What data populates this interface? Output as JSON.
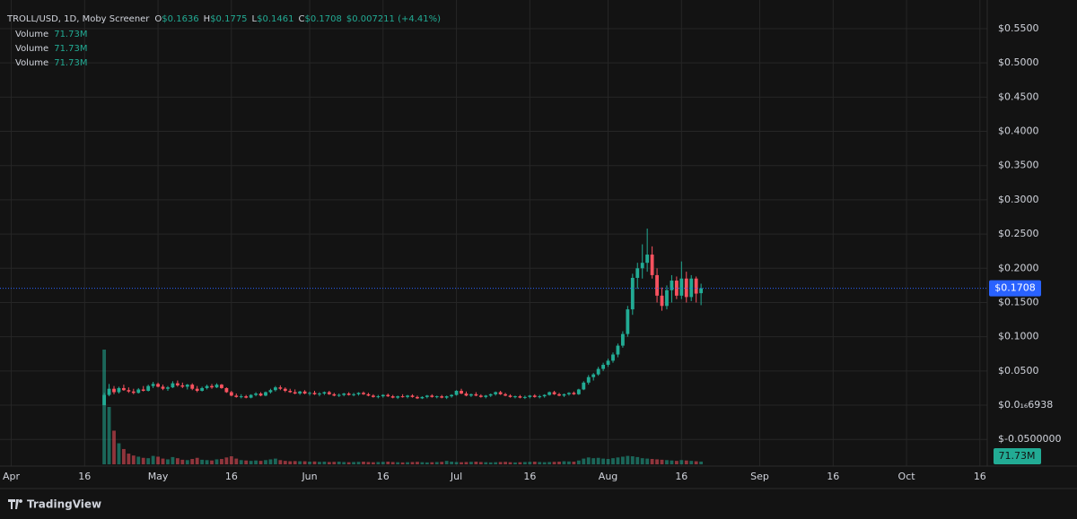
{
  "header": {
    "symbol": "TROLL/USD, 1D, Moby Screener",
    "ohlc": [
      {
        "key": "O",
        "value": "$0.1636"
      },
      {
        "key": "H",
        "value": "$0.1775"
      },
      {
        "key": "L",
        "value": "$0.1461"
      },
      {
        "key": "C",
        "value": "$0.1708"
      }
    ],
    "change": "$0.007211 (+4.41%)",
    "volume_rows": [
      {
        "label": "Volume",
        "value": "71.73M"
      },
      {
        "label": "Volume",
        "value": "71.73M"
      },
      {
        "label": "Volume",
        "value": "71.73M"
      }
    ]
  },
  "footer": {
    "brand": "TradingView"
  },
  "chart_data": {
    "type": "candlestick",
    "up_color": "#22ab94",
    "down_color": "#f7525f",
    "price_line_color": "#2962ff",
    "grid": true,
    "xlim": [
      -1.3,
      200.5
    ],
    "ylim": [
      -0.089,
      0.5919
    ],
    "vlim": [
      0,
      3000
    ],
    "xticks": [
      {
        "value": 1,
        "label": "Apr"
      },
      {
        "value": 16,
        "label": "16"
      },
      {
        "value": 31,
        "label": "May"
      },
      {
        "value": 46,
        "label": "16"
      },
      {
        "value": 62,
        "label": "Jun"
      },
      {
        "value": 77,
        "label": "16"
      },
      {
        "value": 92,
        "label": "Jul"
      },
      {
        "value": 107,
        "label": "16"
      },
      {
        "value": 123,
        "label": "Aug"
      },
      {
        "value": 138,
        "label": "16"
      },
      {
        "value": 154,
        "label": "Sep"
      },
      {
        "value": 169,
        "label": "16"
      },
      {
        "value": 184,
        "label": "Oct"
      },
      {
        "value": 199,
        "label": "16"
      }
    ],
    "yticks": [
      {
        "value": 0.55,
        "label": "$0.5500"
      },
      {
        "value": 0.5,
        "label": "$0.5000"
      },
      {
        "value": 0.45,
        "label": "$0.4500"
      },
      {
        "value": 0.4,
        "label": "$0.4000"
      },
      {
        "value": 0.35,
        "label": "$0.3500"
      },
      {
        "value": 0.3,
        "label": "$0.3000"
      },
      {
        "value": 0.25,
        "label": "$0.2500"
      },
      {
        "value": 0.2,
        "label": "$0.2000"
      },
      {
        "value": 0.15,
        "label": "$0.1500"
      },
      {
        "value": 0.1,
        "label": "$0.1000"
      },
      {
        "value": 0.05,
        "label": "$0.0500"
      },
      {
        "value": 0,
        "label": "$0.0₁₆6938"
      },
      {
        "value": -0.05,
        "label": "$-0.0500000"
      }
    ],
    "last_price_label": "$0.1708",
    "last_volume_label": "71.73M",
    "x": [
      20,
      21,
      22,
      23,
      24,
      25,
      26,
      27,
      28,
      29,
      30,
      31,
      32,
      33,
      34,
      35,
      36,
      37,
      38,
      39,
      40,
      41,
      42,
      43,
      44,
      45,
      46,
      47,
      48,
      49,
      50,
      51,
      52,
      53,
      54,
      55,
      56,
      57,
      58,
      59,
      60,
      61,
      62,
      63,
      64,
      65,
      66,
      67,
      68,
      69,
      70,
      71,
      72,
      73,
      74,
      75,
      76,
      77,
      78,
      79,
      80,
      81,
      82,
      83,
      84,
      85,
      86,
      87,
      88,
      89,
      90,
      91,
      92,
      93,
      94,
      95,
      96,
      97,
      98,
      99,
      100,
      101,
      102,
      103,
      104,
      105,
      106,
      107,
      108,
      109,
      110,
      111,
      112,
      113,
      114,
      115,
      116,
      117,
      118,
      119,
      120,
      121,
      122,
      123,
      124,
      125,
      126,
      127,
      128,
      129,
      130,
      131,
      132,
      133,
      134,
      135,
      136,
      137,
      138,
      139,
      140,
      141,
      142
    ],
    "ohlc": [
      [
        0.0001,
        0.018,
        0.0001,
        0.015
      ],
      [
        0.015,
        0.031,
        0.013,
        0.024
      ],
      [
        0.024,
        0.028,
        0.016,
        0.019
      ],
      [
        0.019,
        0.027,
        0.017,
        0.025
      ],
      [
        0.025,
        0.03,
        0.021,
        0.022
      ],
      [
        0.022,
        0.026,
        0.018,
        0.02
      ],
      [
        0.02,
        0.024,
        0.016,
        0.018
      ],
      [
        0.018,
        0.025,
        0.017,
        0.023
      ],
      [
        0.023,
        0.028,
        0.02,
        0.021
      ],
      [
        0.021,
        0.03,
        0.02,
        0.028
      ],
      [
        0.028,
        0.034,
        0.025,
        0.031
      ],
      [
        0.031,
        0.033,
        0.026,
        0.027
      ],
      [
        0.027,
        0.03,
        0.022,
        0.024
      ],
      [
        0.024,
        0.028,
        0.021,
        0.026
      ],
      [
        0.026,
        0.035,
        0.025,
        0.032
      ],
      [
        0.032,
        0.036,
        0.027,
        0.029
      ],
      [
        0.029,
        0.033,
        0.025,
        0.027
      ],
      [
        0.027,
        0.031,
        0.023,
        0.03
      ],
      [
        0.03,
        0.032,
        0.022,
        0.024
      ],
      [
        0.024,
        0.028,
        0.019,
        0.021
      ],
      [
        0.021,
        0.027,
        0.02,
        0.025
      ],
      [
        0.025,
        0.03,
        0.023,
        0.028
      ],
      [
        0.028,
        0.031,
        0.024,
        0.026
      ],
      [
        0.026,
        0.032,
        0.025,
        0.03
      ],
      [
        0.03,
        0.031,
        0.024,
        0.025
      ],
      [
        0.025,
        0.026,
        0.018,
        0.019
      ],
      [
        0.019,
        0.021,
        0.013,
        0.014
      ],
      [
        0.014,
        0.017,
        0.011,
        0.012
      ],
      [
        0.012,
        0.016,
        0.01,
        0.013
      ],
      [
        0.013,
        0.015,
        0.01,
        0.011
      ],
      [
        0.011,
        0.016,
        0.01,
        0.015
      ],
      [
        0.015,
        0.019,
        0.013,
        0.017
      ],
      [
        0.017,
        0.019,
        0.013,
        0.014
      ],
      [
        0.014,
        0.02,
        0.013,
        0.019
      ],
      [
        0.019,
        0.024,
        0.017,
        0.022
      ],
      [
        0.022,
        0.028,
        0.02,
        0.026
      ],
      [
        0.026,
        0.029,
        0.022,
        0.024
      ],
      [
        0.024,
        0.026,
        0.019,
        0.021
      ],
      [
        0.021,
        0.024,
        0.018,
        0.019
      ],
      [
        0.019,
        0.023,
        0.016,
        0.017
      ],
      [
        0.017,
        0.021,
        0.015,
        0.02
      ],
      [
        0.02,
        0.022,
        0.016,
        0.017
      ],
      [
        0.017,
        0.02,
        0.014,
        0.018
      ],
      [
        0.018,
        0.021,
        0.015,
        0.016
      ],
      [
        0.016,
        0.019,
        0.013,
        0.017
      ],
      [
        0.017,
        0.02,
        0.015,
        0.019
      ],
      [
        0.019,
        0.021,
        0.015,
        0.016
      ],
      [
        0.016,
        0.018,
        0.013,
        0.014
      ],
      [
        0.014,
        0.017,
        0.012,
        0.015
      ],
      [
        0.015,
        0.018,
        0.013,
        0.017
      ],
      [
        0.017,
        0.019,
        0.014,
        0.015
      ],
      [
        0.015,
        0.018,
        0.013,
        0.016
      ],
      [
        0.016,
        0.019,
        0.014,
        0.018
      ],
      [
        0.018,
        0.02,
        0.015,
        0.016
      ],
      [
        0.016,
        0.018,
        0.013,
        0.014
      ],
      [
        0.014,
        0.016,
        0.011,
        0.012
      ],
      [
        0.012,
        0.015,
        0.01,
        0.013
      ],
      [
        0.013,
        0.016,
        0.011,
        0.015
      ],
      [
        0.015,
        0.017,
        0.012,
        0.013
      ],
      [
        0.013,
        0.015,
        0.01,
        0.011
      ],
      [
        0.011,
        0.014,
        0.009,
        0.013
      ],
      [
        0.013,
        0.016,
        0.011,
        0.012
      ],
      [
        0.012,
        0.015,
        0.01,
        0.014
      ],
      [
        0.014,
        0.016,
        0.011,
        0.012
      ],
      [
        0.012,
        0.014,
        0.009,
        0.01
      ],
      [
        0.01,
        0.013,
        0.009,
        0.012
      ],
      [
        0.012,
        0.015,
        0.01,
        0.014
      ],
      [
        0.014,
        0.016,
        0.011,
        0.012
      ],
      [
        0.012,
        0.014,
        0.01,
        0.013
      ],
      [
        0.013,
        0.015,
        0.01,
        0.011
      ],
      [
        0.011,
        0.014,
        0.009,
        0.013
      ],
      [
        0.013,
        0.016,
        0.011,
        0.015
      ],
      [
        0.015,
        0.022,
        0.014,
        0.021
      ],
      [
        0.021,
        0.024,
        0.016,
        0.017
      ],
      [
        0.017,
        0.02,
        0.013,
        0.014
      ],
      [
        0.014,
        0.017,
        0.012,
        0.016
      ],
      [
        0.016,
        0.019,
        0.013,
        0.014
      ],
      [
        0.014,
        0.016,
        0.011,
        0.012
      ],
      [
        0.012,
        0.015,
        0.01,
        0.014
      ],
      [
        0.014,
        0.017,
        0.012,
        0.016
      ],
      [
        0.016,
        0.02,
        0.014,
        0.019
      ],
      [
        0.019,
        0.021,
        0.015,
        0.016
      ],
      [
        0.016,
        0.018,
        0.013,
        0.014
      ],
      [
        0.014,
        0.016,
        0.011,
        0.012
      ],
      [
        0.012,
        0.014,
        0.01,
        0.013
      ],
      [
        0.013,
        0.015,
        0.01,
        0.011
      ],
      [
        0.011,
        0.014,
        0.009,
        0.012
      ],
      [
        0.012,
        0.015,
        0.01,
        0.014
      ],
      [
        0.014,
        0.016,
        0.011,
        0.012
      ],
      [
        0.012,
        0.015,
        0.01,
        0.013
      ],
      [
        0.013,
        0.016,
        0.011,
        0.015
      ],
      [
        0.015,
        0.02,
        0.014,
        0.019
      ],
      [
        0.019,
        0.021,
        0.015,
        0.016
      ],
      [
        0.016,
        0.018,
        0.013,
        0.014
      ],
      [
        0.014,
        0.017,
        0.012,
        0.016
      ],
      [
        0.016,
        0.019,
        0.014,
        0.018
      ],
      [
        0.018,
        0.02,
        0.015,
        0.016
      ],
      [
        0.016,
        0.024,
        0.015,
        0.023
      ],
      [
        0.023,
        0.035,
        0.022,
        0.033
      ],
      [
        0.033,
        0.044,
        0.03,
        0.041
      ],
      [
        0.041,
        0.047,
        0.036,
        0.045
      ],
      [
        0.045,
        0.056,
        0.043,
        0.053
      ],
      [
        0.053,
        0.062,
        0.05,
        0.059
      ],
      [
        0.059,
        0.068,
        0.056,
        0.065
      ],
      [
        0.065,
        0.077,
        0.062,
        0.074
      ],
      [
        0.074,
        0.09,
        0.07,
        0.087
      ],
      [
        0.087,
        0.108,
        0.084,
        0.104
      ],
      [
        0.104,
        0.145,
        0.1,
        0.14
      ],
      [
        0.14,
        0.192,
        0.132,
        0.186
      ],
      [
        0.186,
        0.208,
        0.17,
        0.2
      ],
      [
        0.2,
        0.235,
        0.185,
        0.208
      ],
      [
        0.208,
        0.258,
        0.195,
        0.22
      ],
      [
        0.22,
        0.232,
        0.185,
        0.19
      ],
      [
        0.19,
        0.2,
        0.15,
        0.16
      ],
      [
        0.16,
        0.172,
        0.138,
        0.145
      ],
      [
        0.145,
        0.175,
        0.14,
        0.168
      ],
      [
        0.168,
        0.19,
        0.15,
        0.182
      ],
      [
        0.182,
        0.188,
        0.155,
        0.16
      ],
      [
        0.16,
        0.21,
        0.155,
        0.185
      ],
      [
        0.185,
        0.195,
        0.15,
        0.158
      ],
      [
        0.158,
        0.19,
        0.152,
        0.185
      ],
      [
        0.185,
        0.188,
        0.15,
        0.163
      ],
      [
        0.1636,
        0.1775,
        0.1461,
        0.1708
      ]
    ],
    "volume": [
      3000,
      1500,
      880,
      550,
      400,
      280,
      230,
      200,
      170,
      160,
      220,
      200,
      150,
      130,
      190,
      160,
      120,
      110,
      140,
      170,
      120,
      110,
      100,
      130,
      140,
      180,
      210,
      150,
      110,
      100,
      90,
      100,
      90,
      110,
      130,
      150,
      110,
      90,
      80,
      85,
      80,
      80,
      70,
      75,
      65,
      70,
      60,
      65,
      70,
      60,
      55,
      60,
      65,
      70,
      60,
      55,
      60,
      65,
      70,
      60,
      55,
      50,
      55,
      60,
      65,
      55,
      50,
      55,
      60,
      65,
      90,
      70,
      60,
      55,
      60,
      65,
      70,
      60,
      55,
      50,
      55,
      60,
      65,
      55,
      50,
      55,
      60,
      65,
      70,
      60,
      55,
      60,
      65,
      70,
      80,
      75,
      70,
      100,
      150,
      180,
      160,
      170,
      150,
      140,
      160,
      180,
      200,
      220,
      210,
      190,
      160,
      150,
      140,
      130,
      120,
      110,
      100,
      90,
      110,
      100,
      90,
      80,
      71.73
    ]
  }
}
